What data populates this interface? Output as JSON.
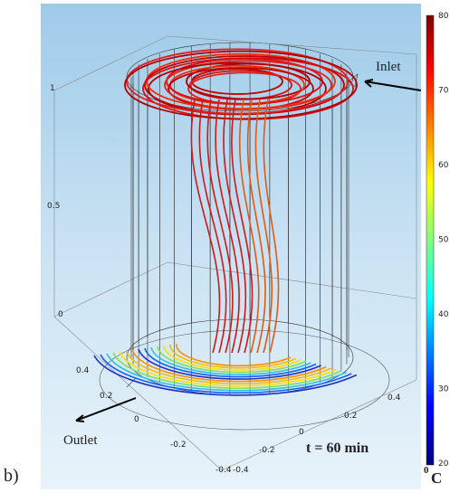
{
  "figure": {
    "panel_label": "b)",
    "annotations": {
      "inlet": "Inlet",
      "outlet": "Outlet",
      "time": "t = 60 min"
    },
    "unit": {
      "degree": "0",
      "letter": "C"
    },
    "z_ticks": [
      "1",
      "0.5",
      "0"
    ],
    "x_ticks": [
      "0.4",
      "0.2",
      "0",
      "-0.2",
      "-0.4"
    ],
    "y_ticks": [
      "-0.4",
      "-0.2",
      "0",
      "0.2",
      "0.4"
    ],
    "colorbar_ticks": [
      "80",
      "70",
      "60",
      "50",
      "40",
      "30",
      "20"
    ]
  }
}
